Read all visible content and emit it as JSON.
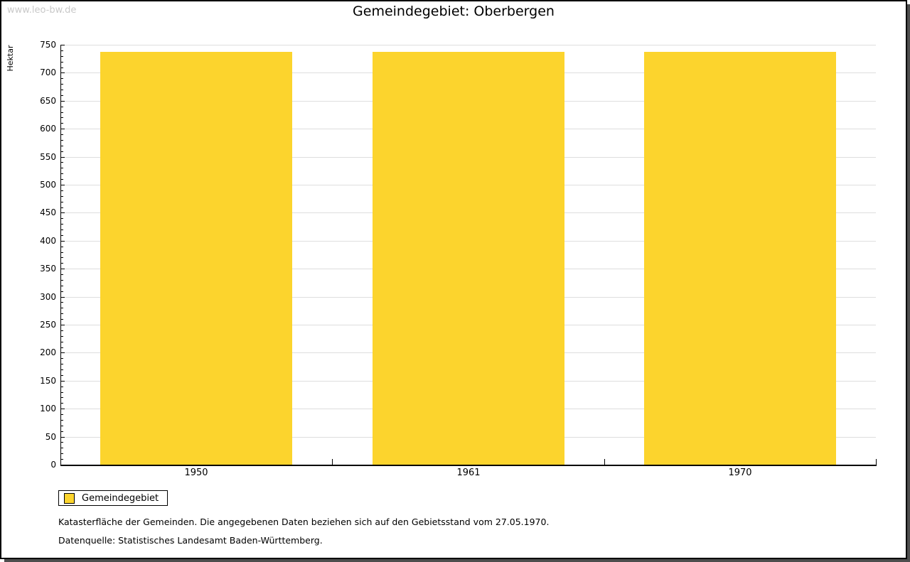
{
  "watermark": "www.leo-bw.de",
  "title": "Gemeindegebiet: Oberbergen",
  "chart_data": {
    "type": "bar",
    "title": "Gemeindegebiet: Oberbergen",
    "categories": [
      "1950",
      "1961",
      "1970"
    ],
    "series": [
      {
        "name": "Gemeindegebiet",
        "values": [
          737,
          737,
          737
        ]
      }
    ],
    "xlabel": "",
    "ylabel": "Hektar",
    "ylim": [
      0,
      750
    ],
    "y_major_step": 50,
    "y_minor_step": 10,
    "grid": true,
    "bar_color": "#FCD42D",
    "legend_position": "bottom-left-outside"
  },
  "legend": {
    "label": "Gemeindegebiet",
    "swatch_color": "#FCD42D"
  },
  "footnotes": [
    "Katasterfläche der Gemeinden. Die angegebenen Daten beziehen sich auf den Gebietsstand vom 27.05.1970.",
    "Datenquelle: Statistisches Landesamt Baden-Württemberg."
  ]
}
